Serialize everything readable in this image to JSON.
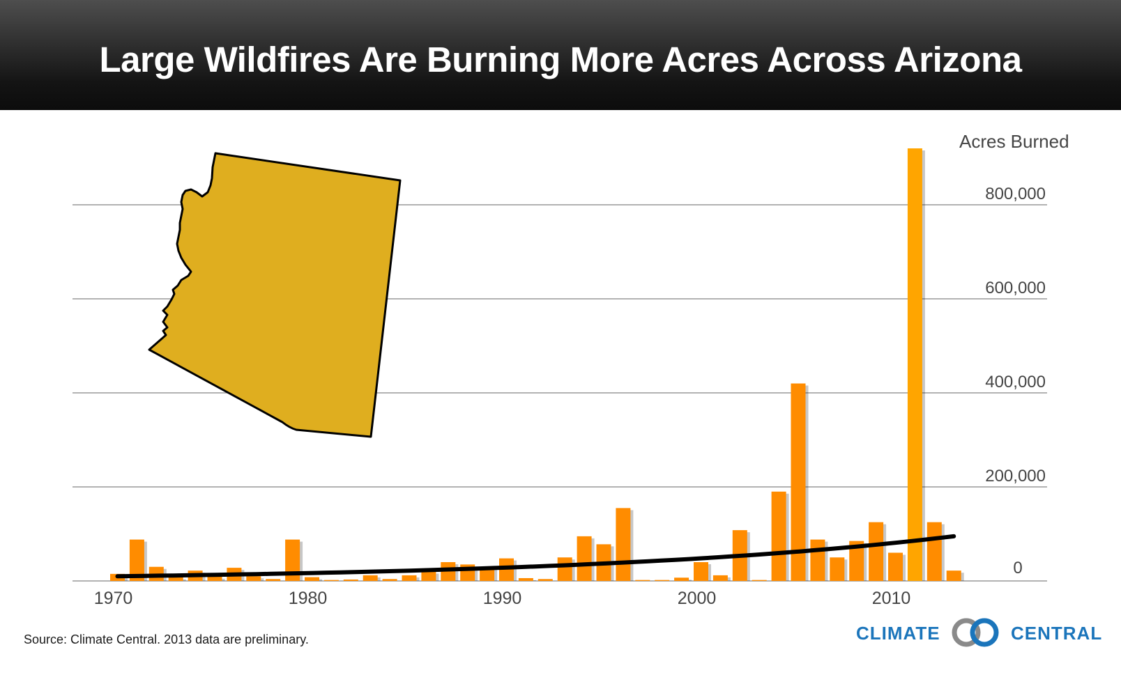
{
  "header": {
    "title": "Large Wildfires Are Burning More Acres Across Arizona"
  },
  "footer": {
    "source": "Source: Climate Central. 2013 data are preliminary."
  },
  "logo": {
    "left_word": "CLIMATE",
    "right_word": "CENTRAL",
    "color": "#1b75bb"
  },
  "colors": {
    "bar": "#ff8c00",
    "bar_peak": "#ffa500",
    "state_fill": "#dfae1f",
    "trend": "#000000",
    "grid": "#999999"
  },
  "illustration": {
    "icon": "arizona-map-icon"
  },
  "chart_data": {
    "type": "bar",
    "title": "Large Wildfires Are Burning More Acres Across Arizona",
    "xlabel": "",
    "ylabel": "Acres Burned",
    "x_ticks": [
      1970,
      1980,
      1990,
      2000,
      2010
    ],
    "y_ticks": [
      0,
      200000,
      400000,
      600000,
      800000
    ],
    "y_tick_labels": [
      "0",
      "200,000",
      "400,000",
      "600,000",
      "800,000"
    ],
    "ylim": [
      0,
      925000
    ],
    "grid": true,
    "y_axis_side": "right",
    "categories": [
      1970,
      1971,
      1972,
      1973,
      1974,
      1975,
      1976,
      1977,
      1978,
      1979,
      1980,
      1981,
      1982,
      1983,
      1984,
      1985,
      1986,
      1987,
      1988,
      1989,
      1990,
      1991,
      1992,
      1993,
      1994,
      1995,
      1996,
      1997,
      1998,
      1999,
      2000,
      2001,
      2002,
      2003,
      2004,
      2005,
      2006,
      2007,
      2008,
      2009,
      2010,
      2011,
      2012,
      2013
    ],
    "values": [
      15000,
      88000,
      30000,
      8000,
      22000,
      9000,
      28000,
      10000,
      4000,
      88000,
      8000,
      2000,
      3000,
      12000,
      4000,
      12000,
      20000,
      40000,
      35000,
      30000,
      48000,
      6000,
      4000,
      50000,
      95000,
      78000,
      155000,
      2000,
      2000,
      7000,
      40000,
      12000,
      108000,
      2000,
      190000,
      420000,
      88000,
      50000,
      85000,
      125000,
      60000,
      920000,
      125000,
      22000
    ],
    "trend": {
      "type": "exponential",
      "start": [
        1970,
        10000
      ],
      "end": [
        2013,
        95000
      ]
    }
  }
}
